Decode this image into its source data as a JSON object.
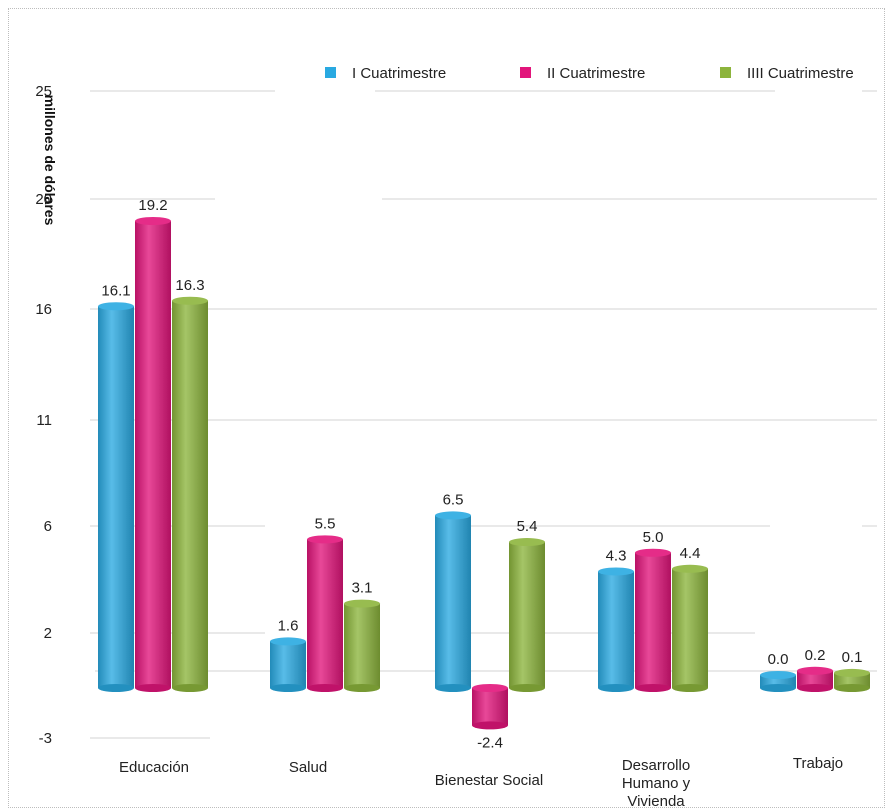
{
  "chart_data": {
    "type": "bar",
    "title": "",
    "ylabel": "millones de dólares",
    "xlabel": "",
    "categories": [
      "Educación",
      "Salud",
      "Bienestar Social",
      "Desarrollo Humano y Vivienda",
      "Trabajo"
    ],
    "yticks": [
      "25",
      "20",
      "16",
      "11",
      "6",
      "2",
      "-3"
    ],
    "legend_position": "top-right",
    "grid": true,
    "series": [
      {
        "name": "I Cuatrimestre",
        "color": "#29a9e1",
        "values": [
          16.1,
          1.6,
          6.5,
          4.3,
          0.0
        ],
        "labels": [
          "16.1",
          "1.6",
          "6.5",
          "4.3",
          "0.0"
        ]
      },
      {
        "name": "II Cuatrimestre",
        "color": "#e2157b",
        "values": [
          19.2,
          5.5,
          -2.4,
          5.0,
          0.2
        ],
        "labels": [
          "19.2",
          "5.5",
          "-2.4",
          "5.0",
          "0.2"
        ]
      },
      {
        "name": "IIII Cuatrimestre",
        "color": "#8cb43c",
        "values": [
          16.3,
          3.1,
          5.4,
          4.4,
          0.1
        ],
        "labels": [
          "16.3",
          "3.1",
          "5.4",
          "4.4",
          "0.1"
        ]
      }
    ]
  }
}
